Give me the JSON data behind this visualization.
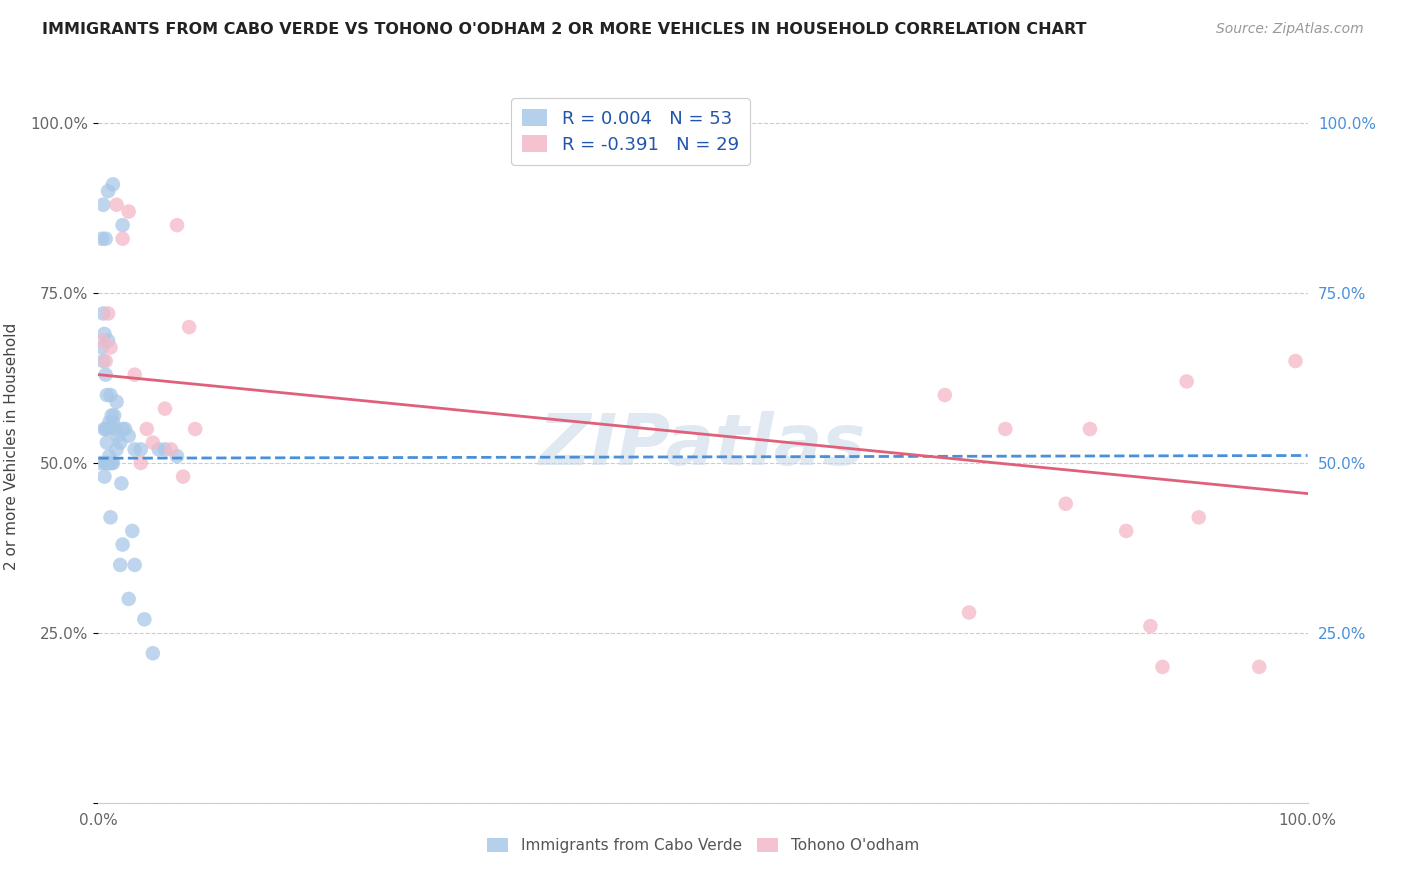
{
  "title": "IMMIGRANTS FROM CABO VERDE VS TOHONO O'ODHAM 2 OR MORE VEHICLES IN HOUSEHOLD CORRELATION CHART",
  "source": "Source: ZipAtlas.com",
  "ylabel": "2 or more Vehicles in Household",
  "y_tick_labels_left": [
    "",
    "25.0%",
    "50.0%",
    "75.0%",
    "100.0%"
  ],
  "y_tick_labels_right": [
    "",
    "25.0%",
    "50.0%",
    "75.0%",
    "100.0%"
  ],
  "y_tick_values": [
    0.0,
    0.25,
    0.5,
    0.75,
    1.0
  ],
  "x_tick_values": [
    0.0,
    0.2,
    0.4,
    0.6,
    0.8,
    1.0
  ],
  "x_tick_labels": [
    "0.0%",
    "",
    "",
    "",
    "",
    "100.0%"
  ],
  "legend_label1": "Immigrants from Cabo Verde",
  "legend_label2": "Tohono O'odham",
  "R1": 0.004,
  "N1": 53,
  "R2": -0.391,
  "N2": 29,
  "blue_color": "#a8c8e8",
  "pink_color": "#f4b8c8",
  "blue_line_color": "#4a90d9",
  "pink_line_color": "#e0607a",
  "right_label_color": "#4a90d9",
  "watermark": "ZIPatlas",
  "blue_scatter_x": [
    0.002,
    0.003,
    0.003,
    0.004,
    0.004,
    0.005,
    0.005,
    0.005,
    0.006,
    0.006,
    0.006,
    0.007,
    0.007,
    0.007,
    0.008,
    0.008,
    0.008,
    0.009,
    0.009,
    0.01,
    0.01,
    0.011,
    0.011,
    0.012,
    0.012,
    0.013,
    0.014,
    0.015,
    0.015,
    0.016,
    0.018,
    0.018,
    0.019,
    0.02,
    0.02,
    0.022,
    0.025,
    0.025,
    0.028,
    0.03,
    0.03,
    0.035,
    0.038,
    0.045,
    0.05,
    0.055,
    0.065,
    0.004,
    0.006,
    0.008,
    0.01,
    0.012,
    0.02
  ],
  "blue_scatter_y": [
    0.5,
    0.67,
    0.83,
    0.65,
    0.72,
    0.48,
    0.55,
    0.69,
    0.5,
    0.55,
    0.63,
    0.5,
    0.53,
    0.6,
    0.5,
    0.55,
    0.68,
    0.51,
    0.56,
    0.5,
    0.6,
    0.5,
    0.57,
    0.5,
    0.56,
    0.57,
    0.55,
    0.52,
    0.59,
    0.54,
    0.35,
    0.53,
    0.47,
    0.38,
    0.55,
    0.55,
    0.3,
    0.54,
    0.4,
    0.35,
    0.52,
    0.52,
    0.27,
    0.22,
    0.52,
    0.52,
    0.51,
    0.88,
    0.83,
    0.9,
    0.42,
    0.91,
    0.85
  ],
  "pink_scatter_x": [
    0.003,
    0.006,
    0.008,
    0.01,
    0.015,
    0.02,
    0.025,
    0.03,
    0.035,
    0.04,
    0.045,
    0.055,
    0.06,
    0.065,
    0.07,
    0.075,
    0.08,
    0.7,
    0.72,
    0.75,
    0.8,
    0.82,
    0.85,
    0.87,
    0.88,
    0.9,
    0.91,
    0.96,
    0.99
  ],
  "pink_scatter_y": [
    0.68,
    0.65,
    0.72,
    0.67,
    0.88,
    0.83,
    0.87,
    0.63,
    0.5,
    0.55,
    0.53,
    0.58,
    0.52,
    0.85,
    0.48,
    0.7,
    0.55,
    0.6,
    0.28,
    0.55,
    0.44,
    0.55,
    0.4,
    0.26,
    0.2,
    0.62,
    0.42,
    0.2,
    0.65
  ],
  "blue_trend_x": [
    0.0,
    1.0
  ],
  "blue_trend_y": [
    0.507,
    0.511
  ],
  "pink_trend_x": [
    0.0,
    1.0
  ],
  "pink_trend_y": [
    0.63,
    0.455
  ],
  "xlim": [
    0.0,
    1.0
  ],
  "ylim": [
    0.0,
    1.05
  ]
}
